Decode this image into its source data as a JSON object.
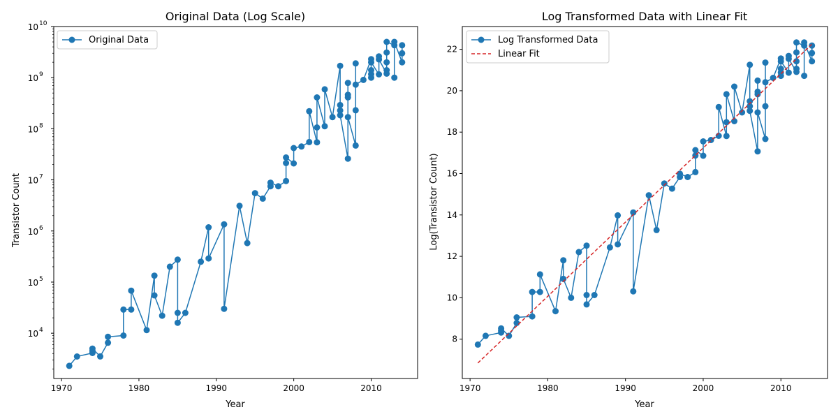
{
  "colors": {
    "series": "#1f77b4",
    "fit": "#d62728",
    "axis": "#000000",
    "background": "#ffffff"
  },
  "chart_data": [
    {
      "type": "line",
      "title": "Original Data (Log Scale)",
      "xlabel": "Year",
      "ylabel": "Transistor Count",
      "yscale": "log",
      "xlim": [
        1969,
        2016
      ],
      "ylim": [
        1300,
        10000000000
      ],
      "xticks": [
        1970,
        1980,
        1990,
        2000,
        2010
      ],
      "xtick_labels": [
        "1970",
        "1980",
        "1990",
        "2000",
        "2010"
      ],
      "yticks": [
        10000,
        100000,
        1000000,
        10000000,
        100000000,
        1000000000,
        10000000000
      ],
      "ytick_labels": [
        {
          "base": "10",
          "exp": "4"
        },
        {
          "base": "10",
          "exp": "5"
        },
        {
          "base": "10",
          "exp": "6"
        },
        {
          "base": "10",
          "exp": "7"
        },
        {
          "base": "10",
          "exp": "8"
        },
        {
          "base": "10",
          "exp": "9"
        },
        {
          "base": "10",
          "exp": "10"
        }
      ],
      "grid": false,
      "legend_position": "upper-left",
      "series": [
        {
          "name": "Original Data",
          "marker": "circle",
          "x": [
            1971,
            1972,
            1974,
            1974,
            1974,
            1975,
            1976,
            1976,
            1978,
            1978,
            1979,
            1979,
            1981,
            1982,
            1982,
            1983,
            1984,
            1985,
            1985,
            1985,
            1986,
            1988,
            1989,
            1989,
            1991,
            1991,
            1993,
            1994,
            1995,
            1996,
            1997,
            1997,
            1998,
            1999,
            1999,
            1999,
            2000,
            2000,
            2001,
            2002,
            2002,
            2003,
            2003,
            2003,
            2004,
            2004,
            2005,
            2006,
            2006,
            2006,
            2006,
            2007,
            2007,
            2007,
            2007,
            2007,
            2008,
            2008,
            2008,
            2008,
            2009,
            2010,
            2010,
            2010,
            2010,
            2010,
            2011,
            2011,
            2011,
            2012,
            2012,
            2012,
            2012,
            2012,
            2013,
            2013,
            2013,
            2014,
            2014,
            2014
          ],
          "y": [
            2300,
            3500,
            4100,
            4500,
            5000,
            3510,
            6500,
            8500,
            9000,
            29000,
            29000,
            68000,
            11500,
            134000,
            55000,
            22000,
            200000,
            275000,
            25000,
            16000,
            25000,
            250000,
            1180000,
            290000,
            1350000,
            30000,
            3100000,
            580000,
            5500000,
            4300000,
            7500000,
            8800000,
            7500000,
            9500000,
            21300000,
            27400000,
            21000000,
            42000000,
            45000000,
            55000000,
            220000000,
            54300000,
            106000000,
            410000000,
            112000000,
            592000000,
            169000000,
            1700000000,
            291000000,
            228000000,
            184000000,
            26000000,
            463000000,
            411000000,
            789000000,
            169000000,
            47000000,
            230000000,
            1900000000,
            731000000,
            904000000,
            2300000000,
            1000000000,
            1170000000,
            1400000000,
            2000000000,
            1160000000,
            2600000000,
            2270000000,
            1200000000,
            1400000000,
            2000000000,
            3100000000,
            5000000000,
            4300000000,
            1000000000,
            5000000000,
            2000000000,
            3000000000,
            4310000000
          ]
        }
      ]
    },
    {
      "type": "line",
      "title": "Log Transformed Data with Linear Fit",
      "xlabel": "Year",
      "ylabel": "Log(Transistor Count)",
      "yscale": "linear",
      "xlim": [
        1969,
        2016
      ],
      "ylim": [
        6.1,
        23.1
      ],
      "xticks": [
        1970,
        1980,
        1990,
        2000,
        2010
      ],
      "xtick_labels": [
        "1970",
        "1980",
        "1990",
        "2000",
        "2010"
      ],
      "yticks": [
        8,
        10,
        12,
        14,
        16,
        18,
        20,
        22
      ],
      "ytick_labels": [
        "8",
        "10",
        "12",
        "14",
        "16",
        "18",
        "20",
        "22"
      ],
      "grid": false,
      "legend_position": "upper-left",
      "series": [
        {
          "name": "Log Transformed Data",
          "marker": "circle",
          "x": [
            1971,
            1972,
            1974,
            1974,
            1974,
            1975,
            1976,
            1976,
            1978,
            1978,
            1979,
            1979,
            1981,
            1982,
            1982,
            1983,
            1984,
            1985,
            1985,
            1985,
            1986,
            1988,
            1989,
            1989,
            1991,
            1991,
            1993,
            1994,
            1995,
            1996,
            1997,
            1997,
            1998,
            1999,
            1999,
            1999,
            2000,
            2000,
            2001,
            2002,
            2002,
            2003,
            2003,
            2003,
            2004,
            2004,
            2005,
            2006,
            2006,
            2006,
            2006,
            2007,
            2007,
            2007,
            2007,
            2007,
            2008,
            2008,
            2008,
            2008,
            2009,
            2010,
            2010,
            2010,
            2010,
            2010,
            2011,
            2011,
            2011,
            2012,
            2012,
            2012,
            2012,
            2012,
            2013,
            2013,
            2013,
            2014,
            2014,
            2014
          ],
          "y": [
            7.74,
            8.16,
            8.32,
            8.41,
            8.52,
            8.16,
            8.78,
            9.05,
            9.1,
            10.28,
            10.28,
            11.13,
            9.35,
            11.81,
            10.91,
            10.0,
            12.21,
            12.52,
            10.13,
            9.68,
            10.13,
            12.43,
            13.98,
            12.58,
            14.12,
            10.31,
            14.95,
            13.27,
            15.52,
            15.27,
            15.83,
            15.99,
            15.83,
            16.07,
            16.87,
            17.13,
            16.86,
            17.55,
            17.62,
            17.82,
            19.21,
            17.81,
            18.48,
            19.83,
            18.53,
            20.2,
            18.95,
            21.25,
            19.49,
            19.25,
            19.03,
            17.07,
            19.95,
            19.83,
            20.49,
            18.95,
            17.67,
            19.25,
            21.36,
            20.41,
            20.62,
            21.56,
            20.72,
            20.88,
            21.06,
            21.42,
            20.87,
            21.68,
            21.54,
            20.91,
            21.06,
            21.42,
            21.85,
            22.33,
            22.18,
            20.72,
            22.33,
            21.42,
            21.82,
            22.18
          ]
        },
        {
          "name": "Linear Fit",
          "style": "dashed",
          "x": [
            1971,
            2014
          ],
          "y": [
            6.85,
            22.25
          ]
        }
      ]
    }
  ]
}
